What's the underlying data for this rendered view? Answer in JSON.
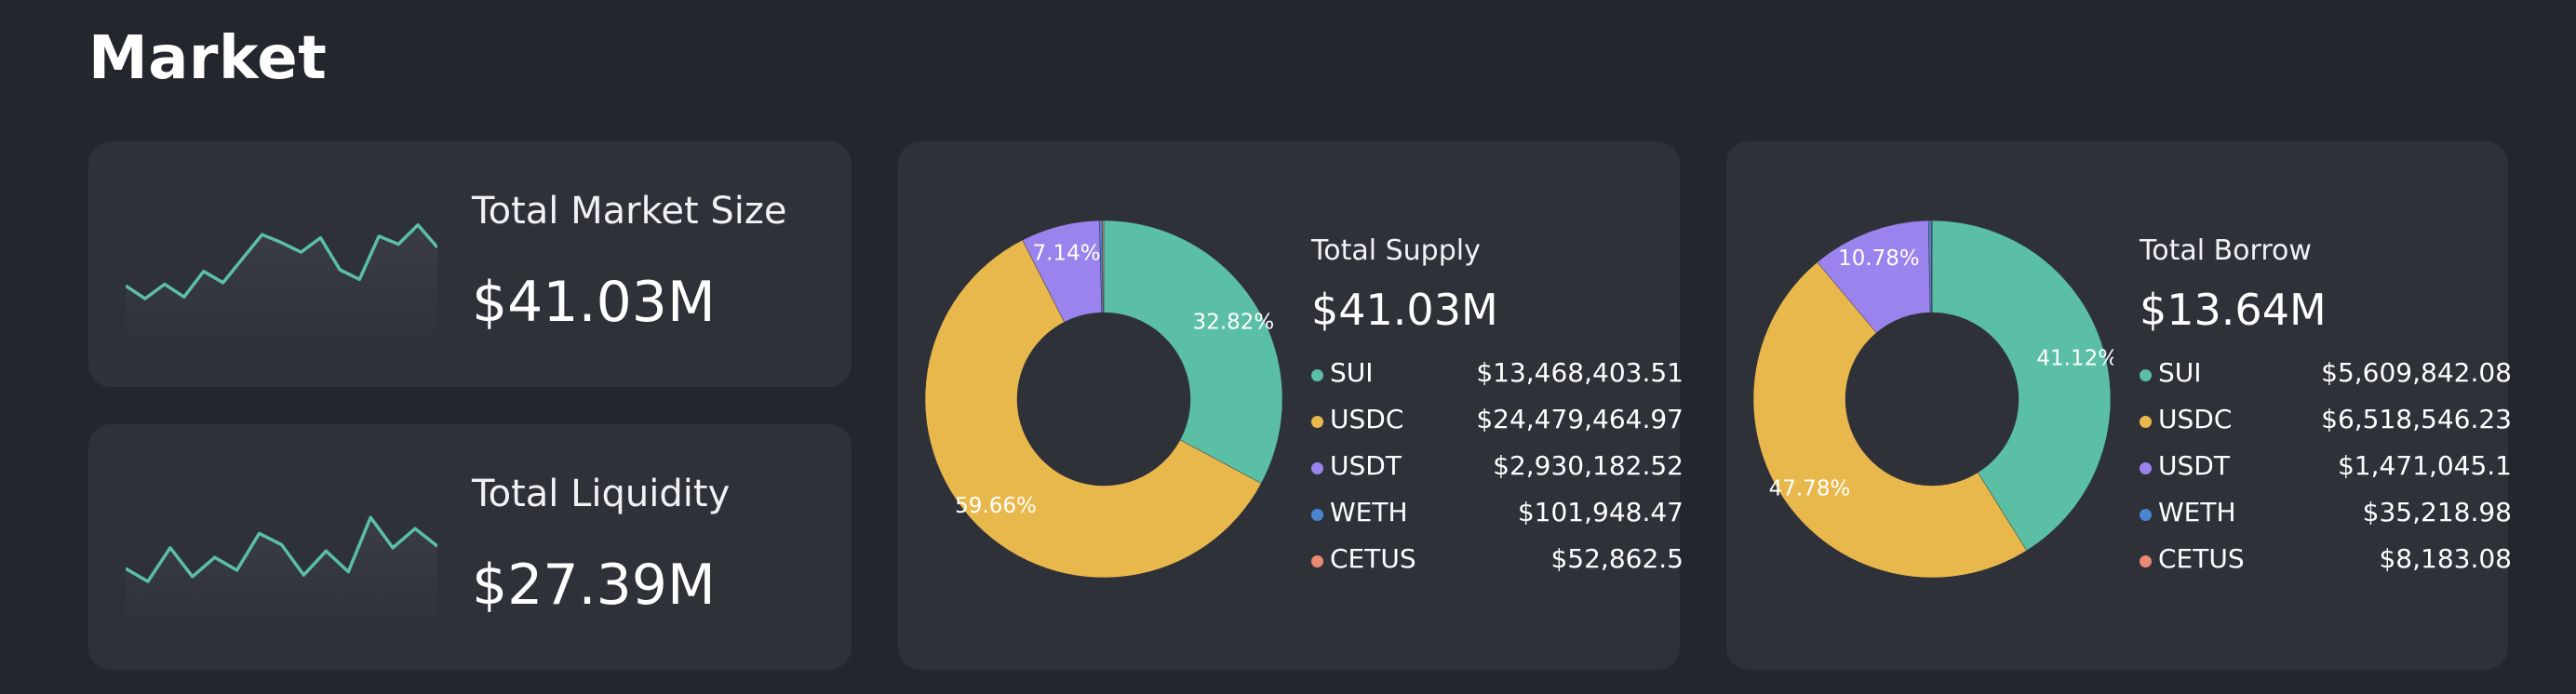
{
  "page": {
    "title": "Market"
  },
  "stats": [
    {
      "label": "Total Market Size",
      "value": "$41.03M",
      "sparkline": [
        0.4,
        0.32,
        0.41,
        0.33,
        0.49,
        0.42,
        0.57,
        0.72,
        0.67,
        0.61,
        0.7,
        0.5,
        0.44,
        0.71,
        0.66,
        0.78,
        0.64
      ]
    },
    {
      "label": "Total Liquidity",
      "value": "$27.39M",
      "sparkline": [
        0.4,
        0.32,
        0.53,
        0.35,
        0.47,
        0.39,
        0.62,
        0.55,
        0.36,
        0.51,
        0.38,
        0.72,
        0.53,
        0.65,
        0.54
      ]
    }
  ],
  "chart_data": [
    {
      "type": "pie",
      "title": "Total Supply",
      "total": "$41.03M",
      "slices": [
        {
          "name": "SUI",
          "value": 32.82,
          "label": "32.82%",
          "color": "#5bbfa5"
        },
        {
          "name": "USDC",
          "value": 59.66,
          "label": "59.66%",
          "color": "#e9b84c"
        },
        {
          "name": "USDT",
          "value": 7.14,
          "label": "7.14%",
          "color": "#9b83ee"
        },
        {
          "name": "WETH",
          "value": 0.25,
          "label": "",
          "color": "#4a86d0"
        },
        {
          "name": "CETUS",
          "value": 0.13,
          "label": "",
          "color": "#e98a72"
        }
      ],
      "legend": [
        {
          "name": "SUI",
          "amount": "$13,468,403.51",
          "color": "#5bbfa5"
        },
        {
          "name": "USDC",
          "amount": "$24,479,464.97",
          "color": "#e9b84c"
        },
        {
          "name": "USDT",
          "amount": "$2,930,182.52",
          "color": "#9b83ee"
        },
        {
          "name": "WETH",
          "amount": "$101,948.47",
          "color": "#4a86d0"
        },
        {
          "name": "CETUS",
          "amount": "$52,862.5",
          "color": "#e98a72"
        }
      ]
    },
    {
      "type": "pie",
      "title": "Total Borrow",
      "total": "$13.64M",
      "slices": [
        {
          "name": "SUI",
          "value": 41.12,
          "label": "41.12%",
          "color": "#5bbfa5"
        },
        {
          "name": "USDC",
          "value": 47.78,
          "label": "47.78%",
          "color": "#e9b84c"
        },
        {
          "name": "USDT",
          "value": 10.78,
          "label": "10.78%",
          "color": "#9b83ee"
        },
        {
          "name": "WETH",
          "value": 0.26,
          "label": "",
          "color": "#4a86d0"
        },
        {
          "name": "CETUS",
          "value": 0.06,
          "label": "",
          "color": "#e98a72"
        }
      ],
      "legend": [
        {
          "name": "SUI",
          "amount": "$5,609,842.08",
          "color": "#5bbfa5"
        },
        {
          "name": "USDC",
          "amount": "$6,518,546.23",
          "color": "#e9b84c"
        },
        {
          "name": "USDT",
          "amount": "$1,471,045.1",
          "color": "#9b83ee"
        },
        {
          "name": "WETH",
          "amount": "$35,218.98",
          "color": "#4a86d0"
        },
        {
          "name": "CETUS",
          "amount": "$8,183.08",
          "color": "#e98a72"
        }
      ]
    }
  ],
  "colors": {
    "accent": "#5bbfa5",
    "background": "#24262e",
    "card": "#2f3139"
  }
}
